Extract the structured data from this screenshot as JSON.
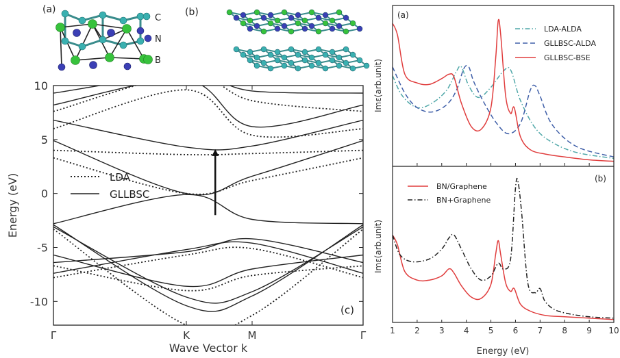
{
  "structures": {
    "a_label": "(a)",
    "b_label": "(b)",
    "atom_labels": [
      "C",
      "N",
      "B"
    ]
  },
  "chart_data": [
    {
      "id": "bands",
      "type": "line",
      "panel_label": "(c)",
      "xlabel": "Wave Vector k",
      "ylabel": "Energy (eV)",
      "x_ticks": [
        "Γ",
        "K",
        "M",
        "Γ"
      ],
      "y_ticks": [
        -10,
        -5,
        0,
        5,
        10
      ],
      "ylim": [
        -12.2,
        10
      ],
      "legend": [
        {
          "name": "LDA",
          "style": "dotted"
        },
        {
          "name": "GLLBSC",
          "style": "solid"
        }
      ],
      "arrow": {
        "k": 1.22,
        "from": -2.0,
        "to": 4.3
      },
      "series": [
        {
          "name": "GLLBSC",
          "style": "solid",
          "k": [
            0,
            1,
            1.5,
            2.5
          ],
          "e": [
            -2.9,
            -10.4,
            -9.5,
            -2.9
          ]
        },
        {
          "name": "GLLBSC",
          "style": "solid",
          "k": [
            0,
            1,
            1.5,
            2.5
          ],
          "e": [
            -3.1,
            -9.6,
            -9.1,
            -3.1
          ]
        },
        {
          "name": "GLLBSC",
          "style": "solid",
          "k": [
            0,
            1,
            1.5,
            2.5
          ],
          "e": [
            -5.7,
            -8.6,
            -7.0,
            -5.7
          ]
        },
        {
          "name": "GLLBSC",
          "style": "solid",
          "k": [
            0,
            1,
            1.5,
            2.5
          ],
          "e": [
            -6.4,
            -5.4,
            -4.2,
            -6.4
          ]
        },
        {
          "name": "GLLBSC",
          "style": "solid",
          "k": [
            0,
            1,
            1.5,
            2.5
          ],
          "e": [
            -7.4,
            -5.2,
            -4.6,
            -7.4
          ]
        },
        {
          "name": "GLLBSC",
          "style": "solid",
          "k": [
            0,
            1,
            1.5,
            2.5
          ],
          "e": [
            -2.8,
            -0.1,
            -2.4,
            -2.8
          ]
        },
        {
          "name": "GLLBSC",
          "style": "solid",
          "k": [
            0,
            1,
            1.5,
            2.5
          ],
          "e": [
            4.9,
            0.0,
            1.6,
            4.9
          ]
        },
        {
          "name": "GLLBSC",
          "style": "solid",
          "k": [
            0,
            1,
            1.5,
            2.5
          ],
          "e": [
            6.8,
            4.3,
            4.4,
            6.8
          ]
        },
        {
          "name": "GLLBSC",
          "style": "solid",
          "k": [
            0,
            1,
            1.5,
            2.5
          ],
          "e": [
            8.2,
            10.5,
            6.2,
            8.2
          ]
        },
        {
          "name": "GLLBSC",
          "style": "solid",
          "k": [
            0,
            1,
            1.5,
            2.5
          ],
          "e": [
            9.3,
            11.0,
            9.5,
            9.3
          ]
        },
        {
          "name": "LDA",
          "style": "dotted",
          "k": [
            0,
            1,
            1.5,
            2.5
          ],
          "e": [
            -3.3,
            -12.2,
            -11.3,
            -3.3
          ]
        },
        {
          "name": "LDA",
          "style": "dotted",
          "k": [
            0,
            1,
            1.5,
            2.5
          ],
          "e": [
            -6.7,
            -9.0,
            -7.6,
            -6.7
          ]
        },
        {
          "name": "LDA",
          "style": "dotted",
          "k": [
            0,
            1,
            1.5,
            2.5
          ],
          "e": [
            -7.8,
            -5.7,
            -5.1,
            -7.8
          ]
        },
        {
          "name": "LDA",
          "style": "dotted",
          "k": [
            0,
            1,
            1.5,
            2.5
          ],
          "e": [
            3.3,
            0.0,
            1.2,
            3.3
          ]
        },
        {
          "name": "LDA",
          "style": "dotted",
          "k": [
            0,
            1,
            1.5,
            2.5
          ],
          "e": [
            4.0,
            3.6,
            3.7,
            4.0
          ]
        },
        {
          "name": "LDA",
          "style": "dotted",
          "k": [
            0,
            1,
            1.5,
            2.5
          ],
          "e": [
            6.0,
            9.6,
            5.4,
            6.0
          ]
        },
        {
          "name": "LDA",
          "style": "dotted",
          "k": [
            0,
            1,
            1.5,
            2.5
          ],
          "e": [
            7.6,
            11.0,
            8.6,
            7.6
          ]
        }
      ]
    },
    {
      "id": "abs_a",
      "type": "line",
      "panel_label": "(a)",
      "ylabel": "Imε(arb.unit)",
      "xlim": [
        1,
        10
      ],
      "legend_placement": "top-right",
      "series": [
        {
          "name": "LDA-ALDA",
          "style": "dashdot",
          "color": "#4fa7a8",
          "x": [
            1.0,
            1.4,
            2.0,
            2.6,
            3.2,
            3.6,
            3.8,
            4.1,
            4.5,
            5.0,
            5.5,
            5.8,
            6.2,
            6.8,
            7.5,
            8.5,
            10.0
          ],
          "y": [
            0.62,
            0.48,
            0.4,
            0.43,
            0.52,
            0.65,
            0.68,
            0.55,
            0.47,
            0.54,
            0.65,
            0.66,
            0.45,
            0.26,
            0.16,
            0.09,
            0.05
          ]
        },
        {
          "name": "GLLBSC-ALDA",
          "style": "dashed",
          "color": "#3f5fa8",
          "x": [
            1.0,
            1.5,
            2.0,
            2.6,
            3.2,
            3.6,
            3.9,
            4.1,
            4.3,
            4.7,
            5.2,
            5.7,
            6.2,
            6.6,
            6.8,
            7.0,
            7.5,
            8.5,
            10.0
          ],
          "y": [
            0.68,
            0.5,
            0.4,
            0.37,
            0.42,
            0.52,
            0.67,
            0.68,
            0.58,
            0.44,
            0.3,
            0.22,
            0.29,
            0.52,
            0.55,
            0.48,
            0.28,
            0.13,
            0.06
          ]
        },
        {
          "name": "GLLBSC-BSE",
          "style": "solid",
          "color": "#e03d3d",
          "x": [
            1.0,
            1.2,
            1.5,
            2.0,
            2.5,
            3.0,
            3.3,
            3.5,
            3.8,
            4.2,
            4.6,
            5.0,
            5.2,
            5.3,
            5.4,
            5.6,
            5.8,
            5.95,
            6.2,
            6.6,
            7.2,
            8.0,
            9.0,
            10.0
          ],
          "y": [
            0.98,
            0.9,
            0.63,
            0.57,
            0.56,
            0.6,
            0.63,
            0.61,
            0.43,
            0.27,
            0.25,
            0.4,
            0.75,
            1.0,
            0.9,
            0.48,
            0.36,
            0.4,
            0.2,
            0.11,
            0.08,
            0.06,
            0.04,
            0.03
          ]
        }
      ]
    },
    {
      "id": "abs_b",
      "type": "line",
      "panel_label": "(b)",
      "xlabel": "Energy (eV)",
      "ylabel": "Imε(arb.unit)",
      "xlim": [
        1,
        10
      ],
      "x_ticks": [
        1,
        2,
        3,
        4,
        5,
        6,
        7,
        8,
        9,
        10
      ],
      "legend_placement": "top-left",
      "series": [
        {
          "name": "BN/Graphene",
          "style": "solid",
          "color": "#e03d3d",
          "x": [
            1.0,
            1.2,
            1.5,
            2.0,
            2.5,
            3.0,
            3.3,
            3.5,
            3.8,
            4.2,
            4.6,
            5.0,
            5.2,
            5.3,
            5.4,
            5.6,
            5.8,
            5.95,
            6.2,
            6.6,
            7.2,
            8.0,
            9.0,
            10.0
          ],
          "y": [
            0.62,
            0.55,
            0.36,
            0.3,
            0.3,
            0.33,
            0.38,
            0.35,
            0.26,
            0.18,
            0.17,
            0.27,
            0.49,
            0.58,
            0.48,
            0.28,
            0.22,
            0.24,
            0.13,
            0.08,
            0.05,
            0.04,
            0.03,
            0.02
          ]
        },
        {
          "name": "BN+Graphene",
          "style": "dashdot",
          "color": "#222222",
          "x": [
            1.0,
            1.3,
            1.8,
            2.5,
            3.0,
            3.3,
            3.5,
            3.8,
            4.2,
            4.6,
            5.0,
            5.3,
            5.5,
            5.8,
            6.0,
            6.1,
            6.25,
            6.5,
            6.8,
            7.0,
            7.2,
            7.6,
            8.2,
            9.0,
            10.0
          ],
          "y": [
            0.62,
            0.48,
            0.43,
            0.45,
            0.52,
            0.6,
            0.62,
            0.52,
            0.38,
            0.3,
            0.33,
            0.42,
            0.38,
            0.45,
            0.95,
            1.0,
            0.78,
            0.28,
            0.21,
            0.24,
            0.15,
            0.09,
            0.06,
            0.04,
            0.03
          ]
        }
      ]
    }
  ]
}
